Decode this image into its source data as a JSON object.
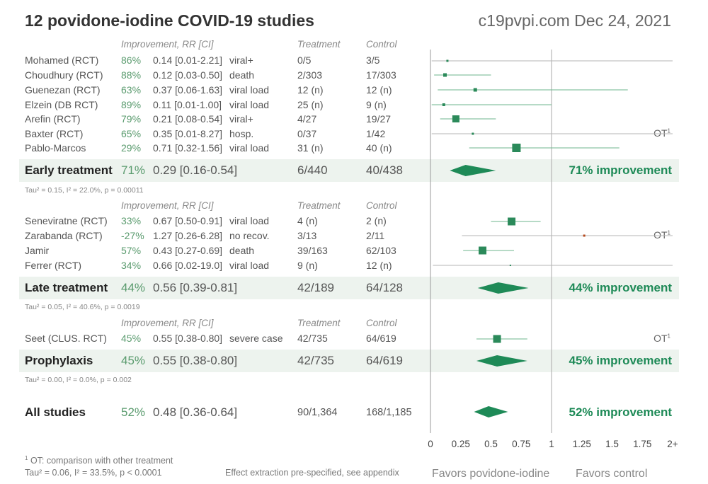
{
  "header": {
    "title": "12 povidone-iodine COVID-19 studies",
    "site": "c19pvpi.com Dec 24, 2021"
  },
  "columns": {
    "improvement": "Improvement, RR [CI]",
    "treatment": "Treatment",
    "control": "Control"
  },
  "colors": {
    "accent": "#1e8a57",
    "marker": "#2b8a5a",
    "band": "#edf3ee",
    "warning_marker": "#b4471a"
  },
  "groups": [
    {
      "studies": [
        {
          "name": "Mohamed (RCT)",
          "imp": "86%",
          "rr": "0.14 [0.01-2.21]",
          "outcome": "viral+",
          "t": "0/5",
          "c": "3/5"
        },
        {
          "name": "Choudhury (RCT)",
          "imp": "88%",
          "rr": "0.12 [0.03-0.50]",
          "outcome": "death",
          "t": "2/303",
          "c": "17/303"
        },
        {
          "name": "Guenezan (RCT)",
          "imp": "63%",
          "rr": "0.37 [0.06-1.63]",
          "outcome": "viral load",
          "t": "12 (n)",
          "c": "12 (n)"
        },
        {
          "name": "Elzein (DB RCT)",
          "imp": "89%",
          "rr": "0.11 [0.01-1.00]",
          "outcome": "viral load",
          "t": "25 (n)",
          "c": "9 (n)"
        },
        {
          "name": "Arefin (RCT)",
          "imp": "79%",
          "rr": "0.21 [0.08-0.54]",
          "outcome": "viral+",
          "t": "4/27",
          "c": "19/27"
        },
        {
          "name": "Baxter (RCT)",
          "imp": "65%",
          "rr": "0.35 [0.01-8.27]",
          "outcome": "hosp.",
          "t": "0/37",
          "c": "1/42",
          "ot": "OT",
          "ot_sup": "1"
        },
        {
          "name": "Pablo-Marcos",
          "imp": "29%",
          "rr": "0.71 [0.32-1.56]",
          "outcome": "viral load",
          "t": "31 (n)",
          "c": "40 (n)"
        }
      ],
      "summary": {
        "name": "Early treatment",
        "imp": "71%",
        "rr": "0.29 [0.16-0.54]",
        "t": "6/440",
        "c": "40/438",
        "label": "71% improvement"
      },
      "tau": "Tau² = 0.15, I² = 22.0%, p = 0.00011"
    },
    {
      "studies": [
        {
          "name": "Seneviratne (RCT)",
          "imp": "33%",
          "rr": "0.67 [0.50-0.91]",
          "outcome": "viral load",
          "t": "4 (n)",
          "c": "2 (n)"
        },
        {
          "name": "Zarabanda (RCT)",
          "imp": "-27%",
          "rr": "1.27 [0.26-6.28]",
          "outcome": "no recov.",
          "t": "3/13",
          "c": "2/11",
          "ot": "OT",
          "ot_sup": "1"
        },
        {
          "name": "Jamir",
          "imp": "57%",
          "rr": "0.43 [0.27-0.69]",
          "outcome": "death",
          "t": "39/163",
          "c": "62/103"
        },
        {
          "name": "Ferrer (RCT)",
          "imp": "34%",
          "rr": "0.66 [0.02-19.0]",
          "outcome": "viral load",
          "t": "9 (n)",
          "c": "12 (n)"
        }
      ],
      "summary": {
        "name": "Late treatment",
        "imp": "44%",
        "rr": "0.56 [0.39-0.81]",
        "t": "42/189",
        "c": "64/128",
        "label": "44% improvement"
      },
      "tau": "Tau² = 0.05, I² = 40.6%, p = 0.0019"
    },
    {
      "studies": [
        {
          "name": "Seet (CLUS. RCT)",
          "imp": "45%",
          "rr": "0.55 [0.38-0.80]",
          "outcome": "severe case",
          "t": "42/735",
          "c": "64/619",
          "ot": "OT",
          "ot_sup": "1"
        }
      ],
      "summary": {
        "name": "Prophylaxis",
        "imp": "45%",
        "rr": "0.55 [0.38-0.80]",
        "t": "42/735",
        "c": "64/619",
        "label": "45% improvement"
      },
      "tau": "Tau² = 0.00, I² = 0.0%, p = 0.002"
    }
  ],
  "overall": {
    "name": "All studies",
    "imp": "52%",
    "rr": "0.48 [0.36-0.64]",
    "t": "90/1,364",
    "c": "168/1,185",
    "label": "52% improvement"
  },
  "footer": {
    "ot_note_sup": "1",
    "ot_note": "OT: comparison with other treatment",
    "tau": "Tau² = 0.06, I² = 33.5%, p < 0.0001",
    "extraction": "Effect extraction pre-specified, see appendix",
    "favors_left": "Favors povidone-iodine",
    "favors_right": "Favors control"
  },
  "chart_data": {
    "type": "forest",
    "x_ticks": [
      "0",
      "0.25",
      "0.5",
      "0.75",
      "1",
      "1.25",
      "1.5",
      "1.75",
      "2+"
    ],
    "xlim": [
      0,
      2
    ],
    "null_line": 1,
    "studies": [
      {
        "name": "Mohamed (RCT)",
        "rr": 0.14,
        "lo": 0.01,
        "hi": 2.21
      },
      {
        "name": "Choudhury (RCT)",
        "rr": 0.12,
        "lo": 0.03,
        "hi": 0.5
      },
      {
        "name": "Guenezan (RCT)",
        "rr": 0.37,
        "lo": 0.06,
        "hi": 1.63
      },
      {
        "name": "Elzein (DB RCT)",
        "rr": 0.11,
        "lo": 0.01,
        "hi": 1.0
      },
      {
        "name": "Arefin (RCT)",
        "rr": 0.21,
        "lo": 0.08,
        "hi": 0.54
      },
      {
        "name": "Baxter (RCT)",
        "rr": 0.35,
        "lo": 0.01,
        "hi": 8.27
      },
      {
        "name": "Pablo-Marcos",
        "rr": 0.71,
        "lo": 0.32,
        "hi": 1.56
      },
      {
        "name": "Seneviratne (RCT)",
        "rr": 0.67,
        "lo": 0.5,
        "hi": 0.91
      },
      {
        "name": "Zarabanda (RCT)",
        "rr": 1.27,
        "lo": 0.26,
        "hi": 6.28
      },
      {
        "name": "Jamir",
        "rr": 0.43,
        "lo": 0.27,
        "hi": 0.69
      },
      {
        "name": "Ferrer (RCT)",
        "rr": 0.66,
        "lo": 0.02,
        "hi": 19.0
      },
      {
        "name": "Seet (CLUS. RCT)",
        "rr": 0.55,
        "lo": 0.38,
        "hi": 0.8
      }
    ],
    "summaries": [
      {
        "name": "Early treatment",
        "rr": 0.29,
        "lo": 0.16,
        "hi": 0.54
      },
      {
        "name": "Late treatment",
        "rr": 0.56,
        "lo": 0.39,
        "hi": 0.81
      },
      {
        "name": "Prophylaxis",
        "rr": 0.55,
        "lo": 0.38,
        "hi": 0.8
      },
      {
        "name": "All studies",
        "rr": 0.48,
        "lo": 0.36,
        "hi": 0.64
      }
    ]
  }
}
